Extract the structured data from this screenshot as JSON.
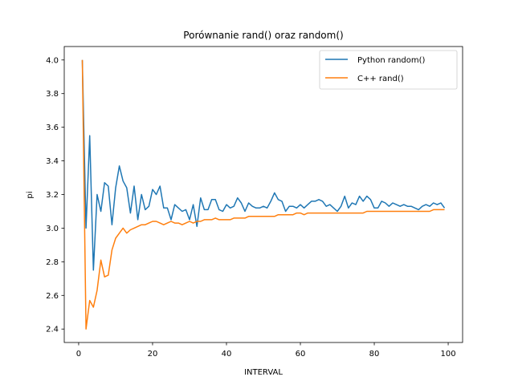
{
  "chart_data": {
    "type": "line",
    "title": "Porównanie rand() oraz random()",
    "xlabel": "INTERVAL",
    "ylabel": "pi",
    "xlim": [
      -3.9,
      103.9
    ],
    "ylim": [
      2.32,
      4.08
    ],
    "xticks": [
      0,
      20,
      40,
      60,
      80,
      100
    ],
    "yticks": [
      2.4,
      2.6,
      2.8,
      3.0,
      3.2,
      3.4,
      3.6,
      3.8,
      4.0
    ],
    "ytick_labels": [
      "2.4",
      "2.6",
      "2.8",
      "3.0",
      "3.2",
      "3.4",
      "3.6",
      "3.8",
      "4.0"
    ],
    "grid": false,
    "legend_position": "top-right",
    "series": [
      {
        "name": "Python random()",
        "color": "#1f77b4",
        "x": [
          1,
          2,
          3,
          4,
          5,
          6,
          7,
          8,
          9,
          10,
          11,
          12,
          13,
          14,
          15,
          16,
          17,
          18,
          19,
          20,
          21,
          22,
          23,
          24,
          25,
          26,
          27,
          28,
          29,
          30,
          31,
          32,
          33,
          34,
          35,
          36,
          37,
          38,
          39,
          40,
          41,
          42,
          43,
          44,
          45,
          46,
          47,
          48,
          49,
          50,
          51,
          52,
          53,
          54,
          55,
          56,
          57,
          58,
          59,
          60,
          61,
          62,
          63,
          64,
          65,
          66,
          67,
          68,
          69,
          70,
          71,
          72,
          73,
          74,
          75,
          76,
          77,
          78,
          79,
          80,
          81,
          82,
          83,
          84,
          85,
          86,
          87,
          88,
          89,
          90,
          91,
          92,
          93,
          94,
          95,
          96,
          97,
          98,
          99
        ],
        "y": [
          4.0,
          3.0,
          3.55,
          2.75,
          3.2,
          3.1,
          3.27,
          3.25,
          3.02,
          3.24,
          3.37,
          3.28,
          3.24,
          3.09,
          3.25,
          3.05,
          3.2,
          3.11,
          3.13,
          3.23,
          3.2,
          3.25,
          3.12,
          3.12,
          3.05,
          3.14,
          3.12,
          3.1,
          3.11,
          3.05,
          3.14,
          3.01,
          3.18,
          3.11,
          3.11,
          3.17,
          3.17,
          3.11,
          3.1,
          3.14,
          3.12,
          3.13,
          3.18,
          3.15,
          3.1,
          3.15,
          3.13,
          3.12,
          3.12,
          3.13,
          3.12,
          3.16,
          3.21,
          3.17,
          3.16,
          3.1,
          3.13,
          3.13,
          3.12,
          3.14,
          3.12,
          3.14,
          3.16,
          3.16,
          3.17,
          3.16,
          3.13,
          3.14,
          3.12,
          3.1,
          3.13,
          3.19,
          3.12,
          3.15,
          3.14,
          3.19,
          3.16,
          3.19,
          3.17,
          3.12,
          3.12,
          3.16,
          3.15,
          3.13,
          3.15,
          3.14,
          3.13,
          3.14,
          3.13,
          3.13,
          3.12,
          3.11,
          3.13,
          3.14,
          3.13,
          3.15,
          3.14,
          3.15,
          3.12
        ]
      },
      {
        "name": "C++ rand()",
        "color": "#ff7f0e",
        "x": [
          1,
          2,
          3,
          4,
          5,
          6,
          7,
          8,
          9,
          10,
          11,
          12,
          13,
          14,
          15,
          16,
          17,
          18,
          19,
          20,
          21,
          22,
          23,
          24,
          25,
          26,
          27,
          28,
          29,
          30,
          31,
          32,
          33,
          34,
          35,
          36,
          37,
          38,
          39,
          40,
          41,
          42,
          43,
          44,
          45,
          46,
          47,
          48,
          49,
          50,
          51,
          52,
          53,
          54,
          55,
          56,
          57,
          58,
          59,
          60,
          61,
          62,
          63,
          64,
          65,
          66,
          67,
          68,
          69,
          70,
          71,
          72,
          73,
          74,
          75,
          76,
          77,
          78,
          79,
          80,
          81,
          82,
          83,
          84,
          85,
          86,
          87,
          88,
          89,
          90,
          91,
          92,
          93,
          94,
          95,
          96,
          97,
          98,
          99
        ],
        "y": [
          4.0,
          2.4,
          2.57,
          2.53,
          2.63,
          2.81,
          2.71,
          2.72,
          2.87,
          2.94,
          2.97,
          3.0,
          2.97,
          2.99,
          3.0,
          3.01,
          3.02,
          3.02,
          3.03,
          3.04,
          3.04,
          3.03,
          3.02,
          3.03,
          3.04,
          3.03,
          3.03,
          3.02,
          3.03,
          3.04,
          3.03,
          3.04,
          3.04,
          3.05,
          3.05,
          3.05,
          3.06,
          3.05,
          3.05,
          3.05,
          3.05,
          3.06,
          3.06,
          3.06,
          3.06,
          3.07,
          3.07,
          3.07,
          3.07,
          3.07,
          3.07,
          3.07,
          3.07,
          3.08,
          3.08,
          3.08,
          3.08,
          3.08,
          3.09,
          3.09,
          3.08,
          3.09,
          3.09,
          3.09,
          3.09,
          3.09,
          3.09,
          3.09,
          3.09,
          3.09,
          3.09,
          3.09,
          3.09,
          3.09,
          3.09,
          3.09,
          3.09,
          3.1,
          3.1,
          3.1,
          3.1,
          3.1,
          3.1,
          3.1,
          3.1,
          3.1,
          3.1,
          3.1,
          3.1,
          3.1,
          3.1,
          3.1,
          3.1,
          3.1,
          3.1,
          3.11,
          3.11,
          3.11,
          3.11
        ]
      }
    ]
  }
}
